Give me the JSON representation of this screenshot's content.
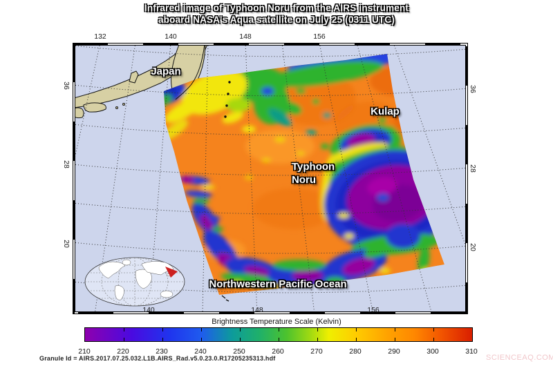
{
  "title": {
    "line1": "Infrared image of Typhoon Noru from the AIRS instrument",
    "line2": "aboard NASA's Aqua satellite on July 25 (0311 UTC)"
  },
  "map": {
    "top_ticks": [
      "132",
      "140",
      "148",
      "156"
    ],
    "bottom_ticks": [
      "140",
      "148",
      "156"
    ],
    "left_ticks": [
      "36",
      "28",
      "20"
    ],
    "right_ticks": [
      "36",
      "28",
      "20"
    ],
    "labels": {
      "japan": "Japan",
      "kulap": "Kulap",
      "typhoon_line1": "Typhoon",
      "typhoon_line2": "Noru",
      "ocean": "Northwestern Pacific Ocean"
    }
  },
  "scale": {
    "title": "Brightness Temperature Scale (Kelvin)",
    "ticks": [
      "210",
      "220",
      "230",
      "240",
      "250",
      "260",
      "270",
      "280",
      "290",
      "300",
      "310"
    ],
    "gradient": [
      "#8e00ae 0%",
      "#4a0ae0 12%",
      "#1f35ee 22%",
      "#1f5bee 30%",
      "#0d9b9b 38%",
      "#1fb06a 45%",
      "#4cc22e 52%",
      "#9ed912 58%",
      "#efef00 63%",
      "#ffcc00 70%",
      "#ffa300 78%",
      "#ff8800 85%",
      "#f25500 92%",
      "#d91e00 100%"
    ]
  },
  "footer": {
    "granule": "Granule Id = AIRS.2017.07.25.032.L1B.AIRS_Rad.v5.0.23.0.R17205235313.hdf",
    "watermark": "SCIENCEAQ.COM"
  },
  "colors": {
    "ocean": "#cdd5ec",
    "land": "#d7d0a4",
    "swath_base": "#f5831d",
    "cold_purple": "#8d009e",
    "cold_blue": "#2336cf",
    "arrow_red": "#cc2020"
  }
}
